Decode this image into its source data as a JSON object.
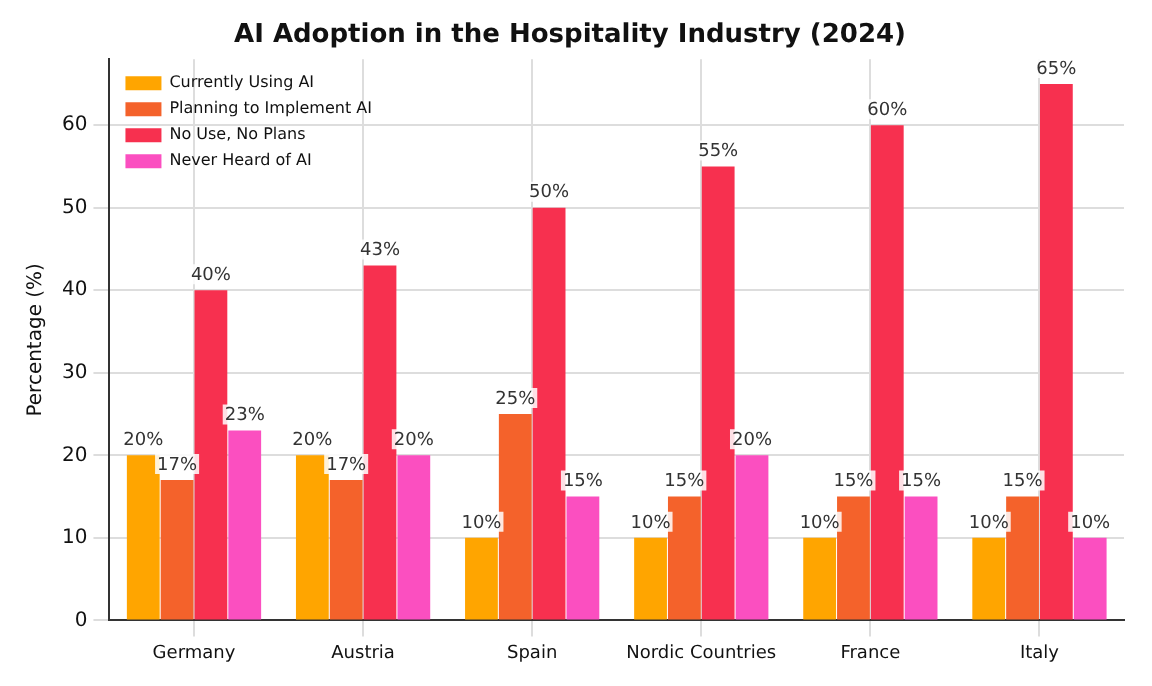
{
  "chart_data": {
    "type": "bar",
    "title": "AI Adoption in the Hospitality Industry (2024)",
    "ylabel": "Percentage (%)",
    "categories": [
      "Germany",
      "Austria",
      "Spain",
      "Nordic Countries",
      "France",
      "Italy"
    ],
    "series": [
      {
        "name": "Currently Using AI",
        "color": "#ffa500",
        "values": [
          20,
          20,
          10,
          10,
          10,
          10
        ],
        "value_labels": [
          "20%",
          "20%",
          "10%",
          "10%",
          "10%",
          "10%"
        ]
      },
      {
        "name": "Planning to Implement AI",
        "color": "#f4622b",
        "values": [
          17,
          17,
          25,
          15,
          15,
          15
        ],
        "value_labels": [
          "17%",
          "17%",
          "25%",
          "15%",
          "15%",
          "15%"
        ]
      },
      {
        "name": "No Use, No Plans",
        "color": "#f7304f",
        "values": [
          40,
          43,
          50,
          55,
          60,
          65
        ],
        "value_labels": [
          "40%",
          "43%",
          "50%",
          "55%",
          "60%",
          "65%"
        ]
      },
      {
        "name": "Never Heard of AI",
        "color": "#fb4fc0",
        "values": [
          23,
          20,
          15,
          20,
          15,
          10
        ],
        "value_labels": [
          "23%",
          "20%",
          "15%",
          "20%",
          "15%",
          "10%"
        ]
      }
    ],
    "ylim": [
      0,
      68
    ],
    "yticks": [
      0,
      10,
      20,
      30,
      40,
      50,
      60
    ],
    "grid": true,
    "legend": "top left"
  }
}
